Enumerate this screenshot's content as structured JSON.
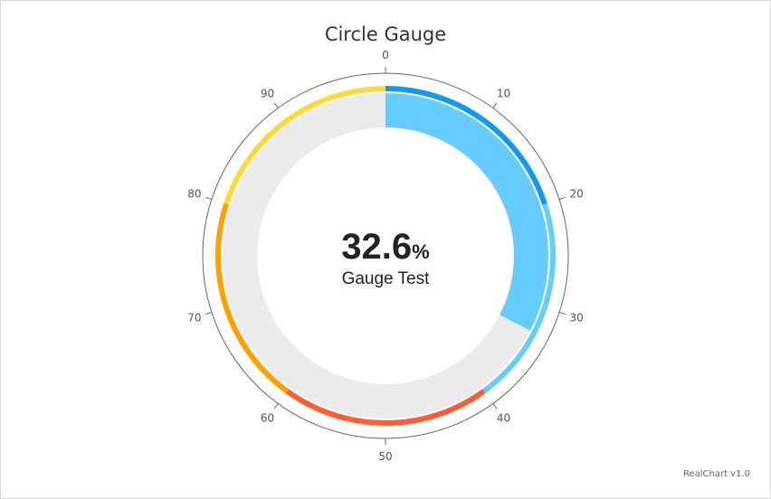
{
  "chart_data": {
    "type": "gauge",
    "title": "Circle Gauge",
    "value": 32.6,
    "value_display": "32.6",
    "value_suffix": "%",
    "label": "Gauge Test",
    "min": 0,
    "max": 100,
    "ticks": [
      "0",
      "10",
      "20",
      "30",
      "40",
      "50",
      "60",
      "70",
      "80",
      "90"
    ],
    "value_color": "#66ccff",
    "track_color": "#ebebeb",
    "bands": [
      {
        "from": 0,
        "to": 20,
        "color": "#1199ee"
      },
      {
        "from": 20,
        "to": 40,
        "color": "#66ccff"
      },
      {
        "from": 40,
        "to": 60,
        "color": "#ff5c35"
      },
      {
        "from": 60,
        "to": 80,
        "color": "#ff9f00"
      },
      {
        "from": 80,
        "to": 100,
        "color": "#ffd83c"
      }
    ]
  },
  "credit": "RealChart v1.0"
}
